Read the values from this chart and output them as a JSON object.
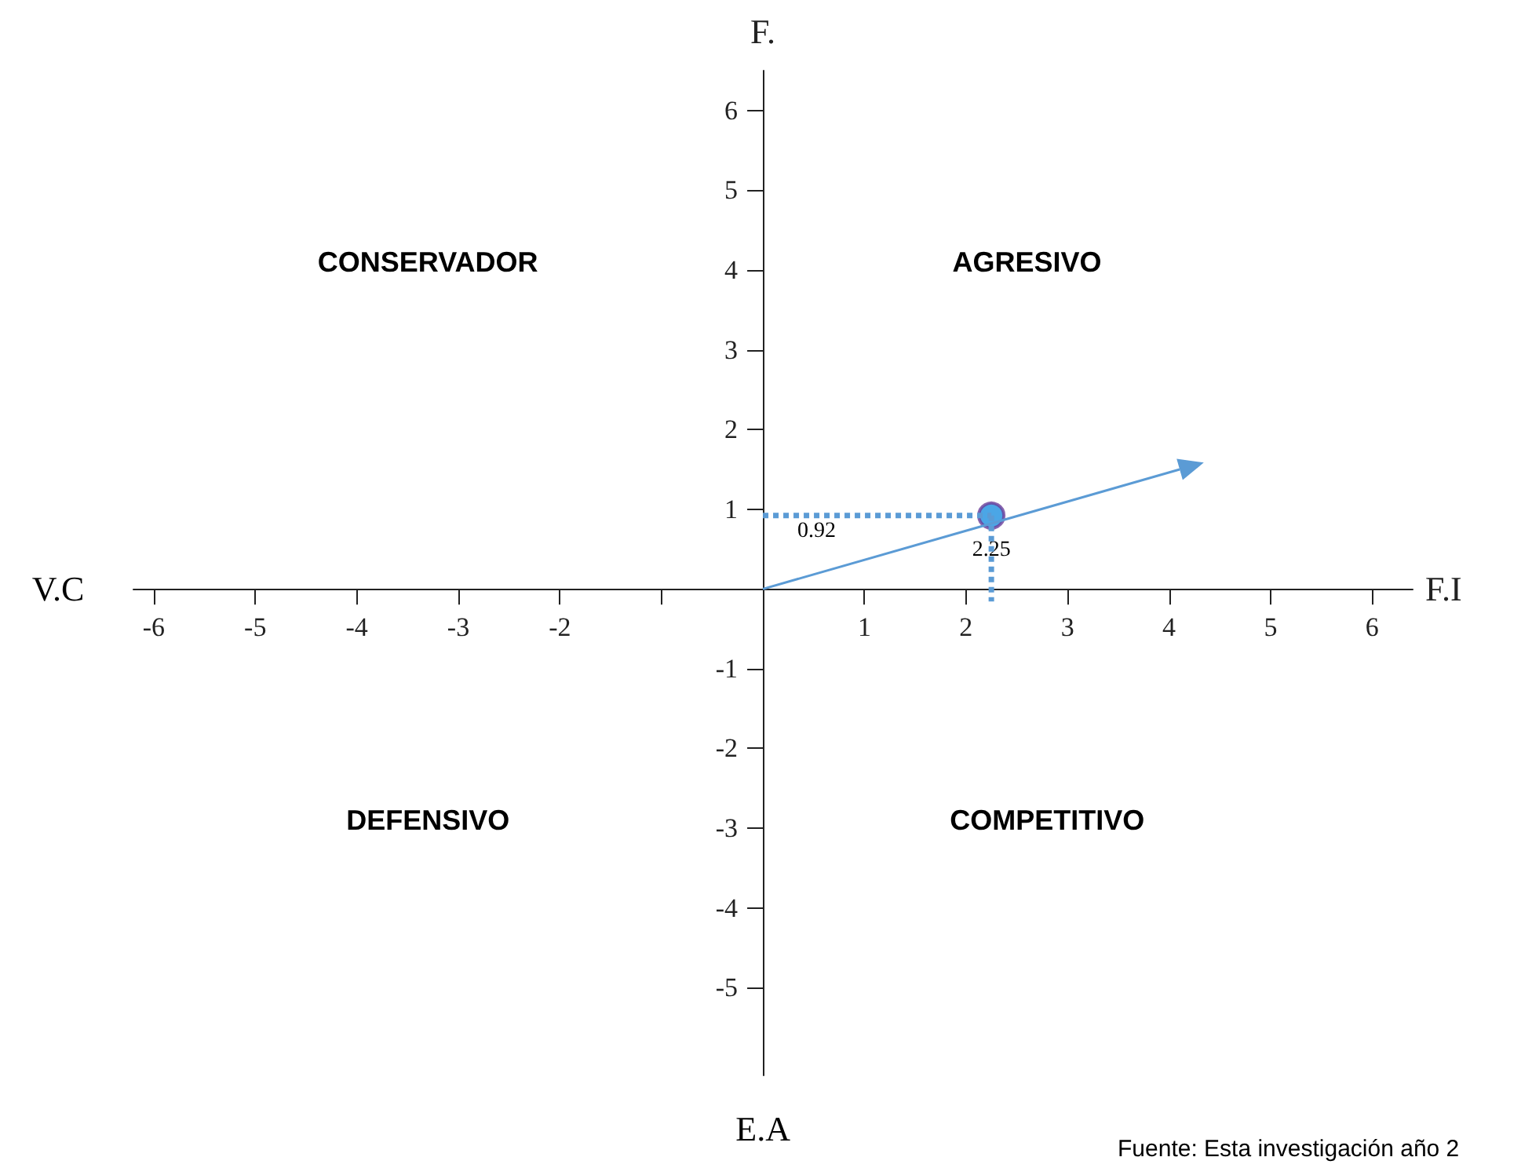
{
  "chart_data": {
    "type": "scatter",
    "xlabel": "F.I",
    "ylabel": "F.",
    "xlim": [
      -6.2,
      6.4
    ],
    "ylim": [
      -6.1,
      6.5
    ],
    "xticks": [
      -6,
      -5,
      -4,
      -3,
      -2,
      {
        "value": -1,
        "label": null
      },
      1,
      2,
      3,
      4,
      5,
      6
    ],
    "yticks": [
      -5,
      -4,
      -3,
      -2,
      -1,
      1,
      2,
      3,
      4,
      5,
      6
    ],
    "series": [
      {
        "color": "#1e90e0",
        "marker": "circle",
        "x": [
          2.25
        ],
        "values": [
          0.92
        ]
      }
    ],
    "annotations": [
      "CONSERVADOR",
      "AGRESIVO",
      "DEFENSIVO",
      "COMPETITIVO",
      "V.C",
      "E.A",
      "Fuente: Esta investigación año 2",
      "0.92",
      "2.25"
    ],
    "grid": false
  }
}
